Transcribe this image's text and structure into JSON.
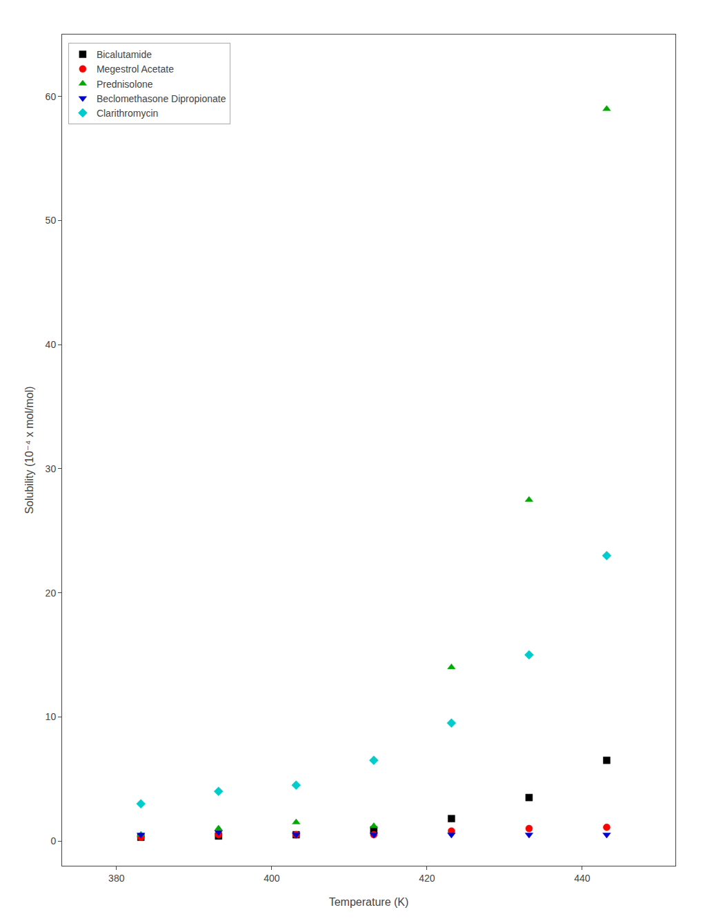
{
  "chart_data": {
    "type": "scatter",
    "xlabel": "Temperature (K)",
    "ylabel": "Solubility (10⁻⁴ x mol/mol)",
    "xlim": [
      373,
      452
    ],
    "ylim": [
      -2,
      65
    ],
    "xticks": [
      380,
      400,
      420,
      440
    ],
    "yticks": [
      0,
      10,
      20,
      30,
      40,
      50,
      60
    ],
    "grid": false,
    "legend": "upper left",
    "x": [
      383.15,
      393.15,
      403.15,
      413.15,
      423.15,
      433.15,
      443.15
    ],
    "series": [
      {
        "name": "Bicalutamide",
        "color": "#000000",
        "marker": "square",
        "values": [
          0.3,
          0.4,
          0.5,
          0.9,
          1.8,
          3.5,
          6.5
        ]
      },
      {
        "name": "Megestrol Acetate",
        "color": "#ff0000",
        "marker": "circle",
        "values": [
          0.3,
          0.5,
          0.5,
          0.5,
          0.8,
          1.0,
          1.1
        ]
      },
      {
        "name": "Prednisolone",
        "color": "#00aa00",
        "marker": "triangle-up",
        "values": [
          0.5,
          1.0,
          1.5,
          1.2,
          14.0,
          27.5,
          59.0
        ]
      },
      {
        "name": "Beclomethasone Dipropionate",
        "color": "#0000cc",
        "marker": "triangle-down",
        "values": [
          0.5,
          0.7,
          0.5,
          0.5,
          0.5,
          0.5,
          0.5
        ]
      },
      {
        "name": "Clarithromycin",
        "color": "#00cccc",
        "marker": "diamond",
        "values": [
          3.0,
          4.0,
          4.5,
          6.5,
          9.5,
          15.0,
          23.0
        ]
      }
    ]
  }
}
